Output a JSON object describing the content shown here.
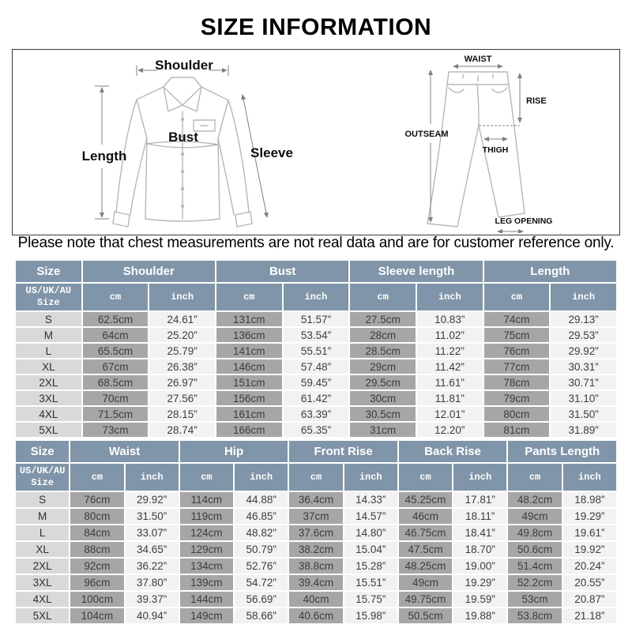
{
  "page": {
    "title": "SIZE INFORMATION",
    "note": "Please note that chest measurements are not real data and are for customer reference only."
  },
  "colors": {
    "header_bg": "#8094aa",
    "size_col_bg": "#d9d9d9",
    "cm_col_bg": "#a6a6a6",
    "inch_col_bg": "#f2f2f2",
    "cell_text": "#3d3d3d"
  },
  "diagram": {
    "shirt": {
      "shoulder": "Shoulder",
      "length": "Length",
      "bust": "Bust",
      "sleeve": "Sleeve"
    },
    "pants": {
      "waist": "WAIST",
      "rise": "RISE",
      "outseam": "OUTSEAM",
      "thigh": "THIGH",
      "leg_opening": "LEG OPENING"
    }
  },
  "tables": [
    {
      "name": "shirt-size-table",
      "groups": [
        {
          "label": "Size",
          "span": 1
        },
        {
          "label": "Shoulder",
          "span": 2
        },
        {
          "label": "Bust",
          "span": 2
        },
        {
          "label": "Sleeve length",
          "span": 2
        },
        {
          "label": "Length",
          "span": 2
        }
      ],
      "subheader": [
        "US/UK/AU\nSize",
        "cm",
        "inch",
        "cm",
        "inch",
        "cm",
        "inch",
        "cm",
        "inch"
      ],
      "rows": [
        [
          "S",
          "62.5cm",
          "24.61”",
          "131cm",
          "51.57”",
          "27.5cm",
          "10.83”",
          "74cm",
          "29.13”"
        ],
        [
          "M",
          "64cm",
          "25.20”",
          "136cm",
          "53.54”",
          "28cm",
          "11.02”",
          "75cm",
          "29.53”"
        ],
        [
          "L",
          "65.5cm",
          "25.79”",
          "141cm",
          "55.51”",
          "28.5cm",
          "11.22”",
          "76cm",
          "29.92”"
        ],
        [
          "XL",
          "67cm",
          "26.38”",
          "146cm",
          "57.48”",
          "29cm",
          "11.42”",
          "77cm",
          "30.31”"
        ],
        [
          "2XL",
          "68.5cm",
          "26.97”",
          "151cm",
          "59.45”",
          "29.5cm",
          "11.61”",
          "78cm",
          "30.71”"
        ],
        [
          "3XL",
          "70cm",
          "27.56”",
          "156cm",
          "61.42”",
          "30cm",
          "11.81”",
          "79cm",
          "31.10”"
        ],
        [
          "4XL",
          "71.5cm",
          "28.15”",
          "161cm",
          "63.39”",
          "30.5cm",
          "12.01”",
          "80cm",
          "31.50”"
        ],
        [
          "5XL",
          "73cm",
          "28.74”",
          "166cm",
          "65.35”",
          "31cm",
          "12.20”",
          "81cm",
          "31.89”"
        ]
      ]
    },
    {
      "name": "pants-size-table",
      "groups": [
        {
          "label": "Size",
          "span": 1
        },
        {
          "label": "Waist",
          "span": 2
        },
        {
          "label": "Hip",
          "span": 2
        },
        {
          "label": "Front Rise",
          "span": 2
        },
        {
          "label": "Back Rise",
          "span": 2
        },
        {
          "label": "Pants Length",
          "span": 2
        }
      ],
      "subheader": [
        "US/UK/AU\nSize",
        "cm",
        "inch",
        "cm",
        "inch",
        "cm",
        "inch",
        "cm",
        "inch",
        "cm",
        "inch"
      ],
      "rows": [
        [
          "S",
          "76cm",
          "29.92”",
          "114cm",
          "44.88”",
          "36.4cm",
          "14.33”",
          "45.25cm",
          "17.81”",
          "48.2cm",
          "18.98”"
        ],
        [
          "M",
          "80cm",
          "31.50”",
          "119cm",
          "46.85”",
          "37cm",
          "14.57”",
          "46cm",
          "18.11”",
          "49cm",
          "19.29”"
        ],
        [
          "L",
          "84cm",
          "33.07”",
          "124cm",
          "48.82”",
          "37.6cm",
          "14.80”",
          "46.75cm",
          "18.41”",
          "49.8cm",
          "19.61”"
        ],
        [
          "XL",
          "88cm",
          "34.65”",
          "129cm",
          "50.79”",
          "38.2cm",
          "15.04”",
          "47.5cm",
          "18.70”",
          "50.6cm",
          "19.92”"
        ],
        [
          "2XL",
          "92cm",
          "36.22”",
          "134cm",
          "52.76”",
          "38.8cm",
          "15.28”",
          "48.25cm",
          "19.00”",
          "51.4cm",
          "20.24”"
        ],
        [
          "3XL",
          "96cm",
          "37.80”",
          "139cm",
          "54.72”",
          "39.4cm",
          "15.51”",
          "49cm",
          "19.29”",
          "52.2cm",
          "20.55”"
        ],
        [
          "4XL",
          "100cm",
          "39.37”",
          "144cm",
          "56.69”",
          "40cm",
          "15.75”",
          "49.75cm",
          "19.59”",
          "53cm",
          "20.87”"
        ],
        [
          "5XL",
          "104cm",
          "40.94”",
          "149cm",
          "58.66”",
          "40.6cm",
          "15.98”",
          "50.5cm",
          "19.88”",
          "53.8cm",
          "21.18”"
        ]
      ]
    }
  ]
}
